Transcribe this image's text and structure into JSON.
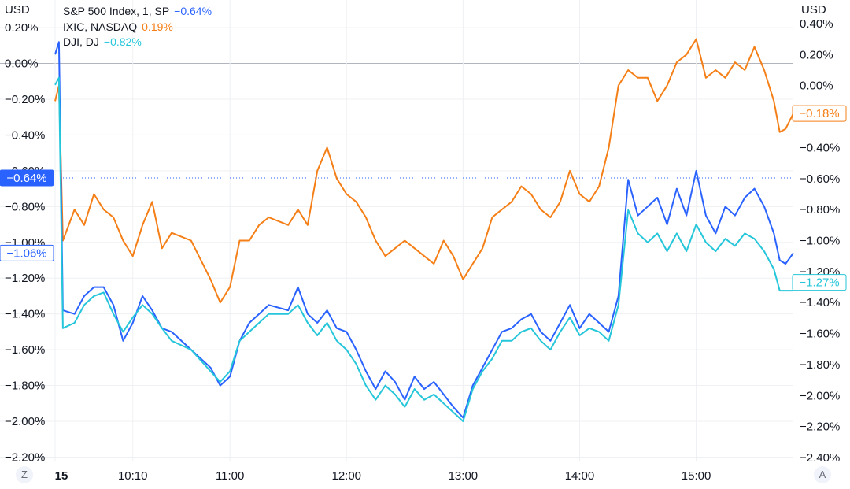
{
  "colors": {
    "sp": "#2962ff",
    "ixic": "#f57f17",
    "dji": "#26c6da",
    "grid": "#eef0f3",
    "zero": "#b2b5be"
  },
  "legend": [
    {
      "name": "S&P 500 Index, 1, SP",
      "value": "−0.64%",
      "color": "#2962ff"
    },
    {
      "name": "IXIC, NASDAQ",
      "value": "0.19%",
      "color": "#f57f17"
    },
    {
      "name": "DJI, DJ",
      "value": "−0.82%",
      "color": "#26c6da"
    }
  ],
  "corner_buttons": {
    "left": "Z",
    "right": "A"
  },
  "chart_data": {
    "type": "line",
    "left_axis": {
      "unit": "USD",
      "range": [
        -2.22,
        0.24
      ],
      "ticks": [
        "0.20%",
        "0.00%",
        "−0.20%",
        "−0.40%",
        "−0.60%",
        "−0.80%",
        "−1.00%",
        "−1.20%",
        "−1.40%",
        "−1.60%",
        "−1.80%",
        "−2.00%",
        "−2.20%"
      ],
      "tick_values": [
        0.2,
        0.0,
        -0.2,
        -0.4,
        -0.6,
        -0.8,
        -1.0,
        -1.2,
        -1.4,
        -1.6,
        -1.8,
        -2.0,
        -2.2
      ]
    },
    "right_axis": {
      "unit": "USD",
      "range": [
        -2.42,
        0.42
      ],
      "ticks": [
        "0.40%",
        "0.20%",
        "0.00%",
        "−0.20%",
        "−0.40%",
        "−0.60%",
        "−0.80%",
        "−1.00%",
        "−1.20%",
        "−1.40%",
        "−1.60%",
        "−1.80%",
        "−2.00%",
        "−2.20%",
        "−2.40%"
      ],
      "tick_values": [
        0.4,
        0.2,
        0.0,
        -0.2,
        -0.4,
        -0.6,
        -0.8,
        -1.0,
        -1.2,
        -1.4,
        -1.6,
        -1.8,
        -2.0,
        -2.2,
        -2.4
      ]
    },
    "x_axis": {
      "range": [
        "09:30",
        "15:50"
      ],
      "ticks": [
        {
          "label": "15",
          "time": "09:30",
          "bold": true
        },
        {
          "label": "10:10",
          "time": "10:10"
        },
        {
          "label": "11:00",
          "time": "11:00"
        },
        {
          "label": "12:00",
          "time": "12:00"
        },
        {
          "label": "13:00",
          "time": "13:00"
        },
        {
          "label": "14:00",
          "time": "14:00"
        },
        {
          "label": "15:00",
          "time": "15:00"
        }
      ]
    },
    "reference_line": {
      "axis": "left",
      "value": -0.64
    },
    "price_labels": [
      {
        "axis": "left",
        "value": -0.64,
        "text": "−0.64%",
        "style": "filled",
        "color": "#2962ff"
      },
      {
        "axis": "left",
        "value": -1.06,
        "text": "−1.06%",
        "style": "outline",
        "color": "#2962ff"
      },
      {
        "axis": "right",
        "value": -0.18,
        "text": "−0.18%",
        "style": "outline",
        "color": "#f57f17"
      },
      {
        "axis": "right",
        "value": -1.27,
        "text": "−1.27%",
        "style": "outline",
        "color": "#26c6da"
      }
    ],
    "series": [
      {
        "name": "IXIC, NASDAQ",
        "axis": "right",
        "color": "#f57f17",
        "points": [
          [
            "09:30",
            -0.1
          ],
          [
            "09:32",
            0.0
          ],
          [
            "09:34",
            -1.0
          ],
          [
            "09:40",
            -0.8
          ],
          [
            "09:45",
            -0.9
          ],
          [
            "09:50",
            -0.7
          ],
          [
            "09:55",
            -0.8
          ],
          [
            "10:00",
            -0.85
          ],
          [
            "10:05",
            -1.0
          ],
          [
            "10:10",
            -1.1
          ],
          [
            "10:15",
            -0.9
          ],
          [
            "10:20",
            -0.75
          ],
          [
            "10:25",
            -1.05
          ],
          [
            "10:30",
            -0.95
          ],
          [
            "10:40",
            -1.0
          ],
          [
            "10:50",
            -1.25
          ],
          [
            "10:55",
            -1.4
          ],
          [
            "11:00",
            -1.3
          ],
          [
            "11:05",
            -1.0
          ],
          [
            "11:10",
            -1.0
          ],
          [
            "11:15",
            -0.9
          ],
          [
            "11:20",
            -0.85
          ],
          [
            "11:30",
            -0.9
          ],
          [
            "11:35",
            -0.8
          ],
          [
            "11:40",
            -0.9
          ],
          [
            "11:45",
            -0.55
          ],
          [
            "11:50",
            -0.4
          ],
          [
            "11:55",
            -0.6
          ],
          [
            "12:00",
            -0.7
          ],
          [
            "12:05",
            -0.75
          ],
          [
            "12:10",
            -0.85
          ],
          [
            "12:15",
            -1.0
          ],
          [
            "12:20",
            -1.1
          ],
          [
            "12:25",
            -1.05
          ],
          [
            "12:30",
            -1.0
          ],
          [
            "12:35",
            -1.05
          ],
          [
            "12:40",
            -1.1
          ],
          [
            "12:45",
            -1.15
          ],
          [
            "12:50",
            -1.0
          ],
          [
            "12:55",
            -1.1
          ],
          [
            "13:00",
            -1.25
          ],
          [
            "13:05",
            -1.15
          ],
          [
            "13:10",
            -1.05
          ],
          [
            "13:15",
            -0.85
          ],
          [
            "13:20",
            -0.8
          ],
          [
            "13:25",
            -0.75
          ],
          [
            "13:30",
            -0.65
          ],
          [
            "13:35",
            -0.7
          ],
          [
            "13:40",
            -0.8
          ],
          [
            "13:45",
            -0.85
          ],
          [
            "13:50",
            -0.75
          ],
          [
            "13:55",
            -0.55
          ],
          [
            "14:00",
            -0.7
          ],
          [
            "14:05",
            -0.75
          ],
          [
            "14:10",
            -0.65
          ],
          [
            "14:15",
            -0.4
          ],
          [
            "14:20",
            0.0
          ],
          [
            "14:25",
            0.1
          ],
          [
            "14:30",
            0.05
          ],
          [
            "14:35",
            0.05
          ],
          [
            "14:40",
            -0.1
          ],
          [
            "14:45",
            0.0
          ],
          [
            "14:50",
            0.15
          ],
          [
            "14:55",
            0.2
          ],
          [
            "15:00",
            0.3
          ],
          [
            "15:05",
            0.05
          ],
          [
            "15:10",
            0.1
          ],
          [
            "15:15",
            0.05
          ],
          [
            "15:20",
            0.15
          ],
          [
            "15:25",
            0.1
          ],
          [
            "15:30",
            0.25
          ],
          [
            "15:35",
            0.1
          ],
          [
            "15:40",
            -0.1
          ],
          [
            "15:43",
            -0.3
          ],
          [
            "15:46",
            -0.28
          ],
          [
            "15:50",
            -0.18
          ]
        ]
      },
      {
        "name": "S&P 500 Index, 1, SP",
        "axis": "left",
        "color": "#2962ff",
        "points": [
          [
            "09:30",
            0.05
          ],
          [
            "09:32",
            0.12
          ],
          [
            "09:34",
            -1.38
          ],
          [
            "09:40",
            -1.4
          ],
          [
            "09:45",
            -1.3
          ],
          [
            "09:50",
            -1.25
          ],
          [
            "09:55",
            -1.25
          ],
          [
            "10:00",
            -1.35
          ],
          [
            "10:05",
            -1.55
          ],
          [
            "10:10",
            -1.45
          ],
          [
            "10:15",
            -1.3
          ],
          [
            "10:20",
            -1.38
          ],
          [
            "10:25",
            -1.48
          ],
          [
            "10:30",
            -1.5
          ],
          [
            "10:40",
            -1.6
          ],
          [
            "10:50",
            -1.7
          ],
          [
            "10:55",
            -1.8
          ],
          [
            "11:00",
            -1.75
          ],
          [
            "11:05",
            -1.55
          ],
          [
            "11:10",
            -1.45
          ],
          [
            "11:15",
            -1.4
          ],
          [
            "11:20",
            -1.35
          ],
          [
            "11:30",
            -1.38
          ],
          [
            "11:35",
            -1.25
          ],
          [
            "11:40",
            -1.4
          ],
          [
            "11:45",
            -1.45
          ],
          [
            "11:50",
            -1.38
          ],
          [
            "11:55",
            -1.48
          ],
          [
            "12:00",
            -1.5
          ],
          [
            "12:05",
            -1.6
          ],
          [
            "12:10",
            -1.72
          ],
          [
            "12:15",
            -1.82
          ],
          [
            "12:20",
            -1.72
          ],
          [
            "12:25",
            -1.78
          ],
          [
            "12:30",
            -1.88
          ],
          [
            "12:35",
            -1.75
          ],
          [
            "12:40",
            -1.82
          ],
          [
            "12:45",
            -1.78
          ],
          [
            "12:50",
            -1.85
          ],
          [
            "12:55",
            -1.92
          ],
          [
            "13:00",
            -1.98
          ],
          [
            "13:05",
            -1.8
          ],
          [
            "13:10",
            -1.7
          ],
          [
            "13:15",
            -1.6
          ],
          [
            "13:20",
            -1.5
          ],
          [
            "13:25",
            -1.48
          ],
          [
            "13:30",
            -1.43
          ],
          [
            "13:35",
            -1.4
          ],
          [
            "13:40",
            -1.5
          ],
          [
            "13:45",
            -1.55
          ],
          [
            "13:50",
            -1.45
          ],
          [
            "13:55",
            -1.35
          ],
          [
            "14:00",
            -1.48
          ],
          [
            "14:05",
            -1.4
          ],
          [
            "14:10",
            -1.45
          ],
          [
            "14:15",
            -1.5
          ],
          [
            "14:20",
            -1.3
          ],
          [
            "14:25",
            -0.65
          ],
          [
            "14:30",
            -0.85
          ],
          [
            "14:35",
            -0.8
          ],
          [
            "14:40",
            -0.75
          ],
          [
            "14:45",
            -0.9
          ],
          [
            "14:50",
            -0.7
          ],
          [
            "14:55",
            -0.85
          ],
          [
            "15:00",
            -0.6
          ],
          [
            "15:05",
            -0.85
          ],
          [
            "15:10",
            -0.95
          ],
          [
            "15:15",
            -0.8
          ],
          [
            "15:20",
            -0.85
          ],
          [
            "15:25",
            -0.75
          ],
          [
            "15:30",
            -0.7
          ],
          [
            "15:35",
            -0.8
          ],
          [
            "15:40",
            -0.95
          ],
          [
            "15:43",
            -1.1
          ],
          [
            "15:46",
            -1.12
          ],
          [
            "15:50",
            -1.06
          ]
        ]
      },
      {
        "name": "DJI, DJ",
        "axis": "left",
        "color": "#26c6da",
        "points": [
          [
            "09:30",
            -0.12
          ],
          [
            "09:32",
            -0.08
          ],
          [
            "09:34",
            -1.48
          ],
          [
            "09:40",
            -1.45
          ],
          [
            "09:45",
            -1.35
          ],
          [
            "09:50",
            -1.3
          ],
          [
            "09:55",
            -1.28
          ],
          [
            "10:00",
            -1.4
          ],
          [
            "10:05",
            -1.5
          ],
          [
            "10:10",
            -1.42
          ],
          [
            "10:15",
            -1.35
          ],
          [
            "10:20",
            -1.4
          ],
          [
            "10:25",
            -1.48
          ],
          [
            "10:30",
            -1.55
          ],
          [
            "10:40",
            -1.6
          ],
          [
            "10:50",
            -1.72
          ],
          [
            "10:55",
            -1.78
          ],
          [
            "11:00",
            -1.72
          ],
          [
            "11:05",
            -1.55
          ],
          [
            "11:10",
            -1.5
          ],
          [
            "11:15",
            -1.45
          ],
          [
            "11:20",
            -1.4
          ],
          [
            "11:30",
            -1.4
          ],
          [
            "11:35",
            -1.35
          ],
          [
            "11:40",
            -1.45
          ],
          [
            "11:45",
            -1.52
          ],
          [
            "11:50",
            -1.45
          ],
          [
            "11:55",
            -1.55
          ],
          [
            "12:00",
            -1.6
          ],
          [
            "12:05",
            -1.68
          ],
          [
            "12:10",
            -1.8
          ],
          [
            "12:15",
            -1.88
          ],
          [
            "12:20",
            -1.8
          ],
          [
            "12:25",
            -1.85
          ],
          [
            "12:30",
            -1.92
          ],
          [
            "12:35",
            -1.82
          ],
          [
            "12:40",
            -1.88
          ],
          [
            "12:45",
            -1.85
          ],
          [
            "12:50",
            -1.9
          ],
          [
            "12:55",
            -1.95
          ],
          [
            "13:00",
            -2.0
          ],
          [
            "13:05",
            -1.82
          ],
          [
            "13:10",
            -1.72
          ],
          [
            "13:15",
            -1.65
          ],
          [
            "13:20",
            -1.55
          ],
          [
            "13:25",
            -1.55
          ],
          [
            "13:30",
            -1.5
          ],
          [
            "13:35",
            -1.48
          ],
          [
            "13:40",
            -1.55
          ],
          [
            "13:45",
            -1.6
          ],
          [
            "13:50",
            -1.5
          ],
          [
            "13:55",
            -1.42
          ],
          [
            "14:00",
            -1.52
          ],
          [
            "14:05",
            -1.48
          ],
          [
            "14:10",
            -1.5
          ],
          [
            "14:15",
            -1.55
          ],
          [
            "14:20",
            -1.35
          ],
          [
            "14:25",
            -0.82
          ],
          [
            "14:30",
            -0.95
          ],
          [
            "14:35",
            -1.0
          ],
          [
            "14:40",
            -0.95
          ],
          [
            "14:45",
            -1.05
          ],
          [
            "14:50",
            -0.95
          ],
          [
            "14:55",
            -1.05
          ],
          [
            "15:00",
            -0.9
          ],
          [
            "15:05",
            -1.0
          ],
          [
            "15:10",
            -1.05
          ],
          [
            "15:15",
            -0.98
          ],
          [
            "15:20",
            -1.02
          ],
          [
            "15:25",
            -0.95
          ],
          [
            "15:30",
            -0.98
          ],
          [
            "15:35",
            -1.05
          ],
          [
            "15:40",
            -1.15
          ],
          [
            "15:43",
            -1.27
          ],
          [
            "15:46",
            -1.27
          ],
          [
            "15:50",
            -1.27
          ]
        ]
      }
    ]
  }
}
